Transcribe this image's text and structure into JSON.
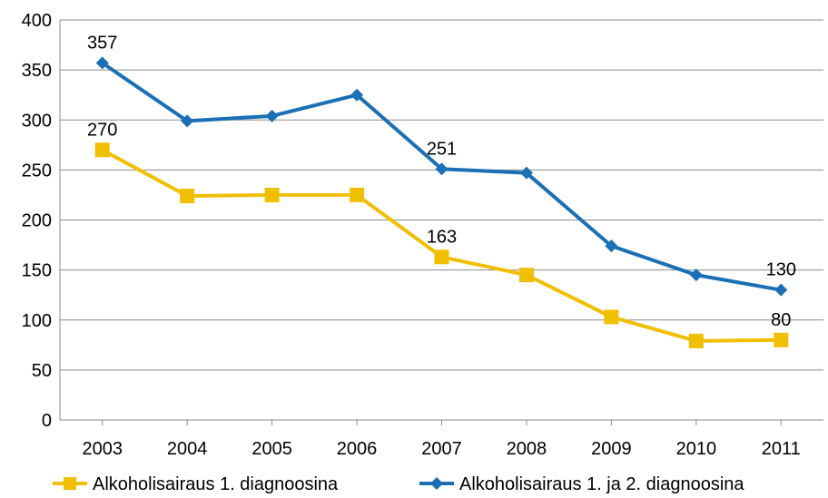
{
  "chart_data": {
    "type": "line",
    "categories": [
      "2003",
      "2004",
      "2005",
      "2006",
      "2007",
      "2008",
      "2009",
      "2010",
      "2011"
    ],
    "ylim": [
      0,
      400
    ],
    "yticks": [
      "0",
      "50",
      "100",
      "150",
      "200",
      "250",
      "300",
      "350",
      "400"
    ],
    "grid": true,
    "legend_position": "bottom",
    "series": [
      {
        "name": "Alkoholisairaus 1. diagnoosina",
        "values": [
          270,
          224,
          225,
          225,
          163,
          145,
          103,
          79,
          80
        ],
        "color": "#F0BF00",
        "marker": "square",
        "labels": [
          {
            "index": 0,
            "text": "270"
          },
          {
            "index": 4,
            "text": "163"
          },
          {
            "index": 8,
            "text": "80"
          }
        ]
      },
      {
        "name": "Alkoholisairaus 1. ja 2. diagnoosina",
        "values": [
          357,
          299,
          304,
          325,
          251,
          247,
          174,
          145,
          130
        ],
        "color": "#1A6FB5",
        "marker": "diamond",
        "labels": [
          {
            "index": 0,
            "text": "357"
          },
          {
            "index": 4,
            "text": "251"
          },
          {
            "index": 8,
            "text": "130"
          }
        ]
      }
    ]
  }
}
